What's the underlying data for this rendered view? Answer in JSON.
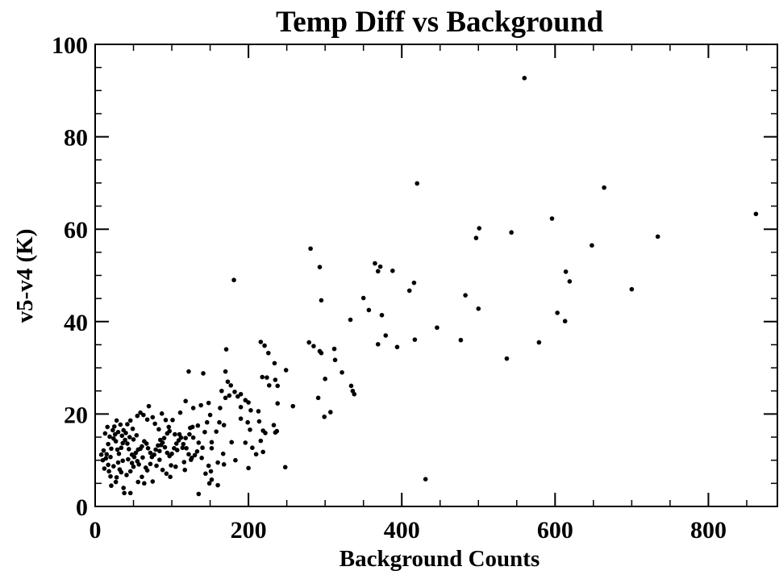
{
  "chart_data": {
    "type": "scatter",
    "title": "Temp Diff vs Background",
    "xlabel": "Background Counts",
    "ylabel": "v5-v4 (K)",
    "xlim": [
      0,
      890
    ],
    "ylim": [
      0,
      100
    ],
    "xticks": [
      0,
      200,
      400,
      600,
      800
    ],
    "yticks": [
      0,
      20,
      40,
      60,
      80,
      100
    ],
    "xtick_labels": [
      "0",
      "200",
      "400",
      "600",
      "800"
    ],
    "ytick_labels": [
      "0",
      "20",
      "40",
      "60",
      "80",
      "100"
    ],
    "grid": false,
    "points": [
      [
        560,
        92.7
      ],
      [
        420,
        69.9
      ],
      [
        664,
        69.0
      ],
      [
        862,
        63.3
      ],
      [
        596,
        62.3
      ],
      [
        501,
        60.2
      ],
      [
        497,
        58.1
      ],
      [
        543,
        59.3
      ],
      [
        734,
        58.4
      ],
      [
        648,
        56.5
      ],
      [
        281,
        55.8
      ],
      [
        365,
        52.6
      ],
      [
        372,
        51.9
      ],
      [
        369,
        50.9
      ],
      [
        293,
        51.8
      ],
      [
        388,
        51.0
      ],
      [
        614,
        50.8
      ],
      [
        619,
        48.7
      ],
      [
        416,
        48.4
      ],
      [
        181,
        49.0
      ],
      [
        410,
        46.7
      ],
      [
        700,
        47.0
      ],
      [
        483,
        45.7
      ],
      [
        295,
        44.6
      ],
      [
        350,
        45.1
      ],
      [
        357,
        42.5
      ],
      [
        374,
        41.4
      ],
      [
        500,
        42.8
      ],
      [
        603,
        41.9
      ],
      [
        613,
        40.1
      ],
      [
        333,
        40.4
      ],
      [
        446,
        38.7
      ],
      [
        379,
        37.0
      ],
      [
        417,
        36.1
      ],
      [
        477,
        36.0
      ],
      [
        579,
        35.5
      ],
      [
        279,
        35.5
      ],
      [
        369,
        35.1
      ],
      [
        394,
        34.5
      ],
      [
        312,
        34.1
      ],
      [
        285,
        34.7
      ],
      [
        293,
        33.6
      ],
      [
        295,
        33.2
      ],
      [
        216,
        35.6
      ],
      [
        221,
        34.8
      ],
      [
        171,
        34.0
      ],
      [
        537,
        32.0
      ],
      [
        313,
        31.7
      ],
      [
        226,
        33.2
      ],
      [
        234,
        31.0
      ],
      [
        322,
        29.0
      ],
      [
        249,
        29.5
      ],
      [
        122,
        29.2
      ],
      [
        170,
        29.2
      ],
      [
        141,
        28.8
      ],
      [
        334,
        26.1
      ],
      [
        336,
        25.0
      ],
      [
        338,
        24.3
      ],
      [
        300,
        27.6
      ],
      [
        291,
        23.5
      ],
      [
        173,
        27.0
      ],
      [
        177,
        26.2
      ],
      [
        218,
        28.0
      ],
      [
        224,
        27.9
      ],
      [
        235,
        27.4
      ],
      [
        238,
        26.1
      ],
      [
        227,
        26.2
      ],
      [
        182,
        24.8
      ],
      [
        175,
        24.0
      ],
      [
        186,
        23.8
      ],
      [
        190,
        24.3
      ],
      [
        196,
        23.0
      ],
      [
        165,
        25.0
      ],
      [
        170,
        23.5
      ],
      [
        190,
        21.5
      ],
      [
        200,
        22.5
      ],
      [
        203,
        20.8
      ],
      [
        213,
        20.6
      ],
      [
        238,
        22.3
      ],
      [
        258,
        21.7
      ],
      [
        163,
        21.3
      ],
      [
        148,
        22.4
      ],
      [
        150,
        19.8
      ],
      [
        146,
        18.2
      ],
      [
        138,
        21.9
      ],
      [
        128,
        21.3
      ],
      [
        118,
        22.8
      ],
      [
        111,
        20.3
      ],
      [
        307,
        20.4
      ],
      [
        299,
        19.4
      ],
      [
        190,
        19.0
      ],
      [
        199,
        18.2
      ],
      [
        202,
        16.6
      ],
      [
        233,
        17.6
      ],
      [
        235,
        16.0
      ],
      [
        237,
        16.3
      ],
      [
        214,
        18.4
      ],
      [
        219,
        16.4
      ],
      [
        222,
        15.9
      ],
      [
        216,
        14.2
      ],
      [
        162,
        18.2
      ],
      [
        168,
        17.6
      ],
      [
        158,
        16.2
      ],
      [
        152,
        13.9
      ],
      [
        143,
        16.1
      ],
      [
        134,
        17.5
      ],
      [
        127,
        17.2
      ],
      [
        128,
        14.9
      ],
      [
        135,
        13.8
      ],
      [
        140,
        12.7
      ],
      [
        152,
        12.6
      ],
      [
        167,
        11.4
      ],
      [
        178,
        13.9
      ],
      [
        196,
        13.8
      ],
      [
        205,
        12.7
      ],
      [
        210,
        11.3
      ],
      [
        219,
        11.8
      ],
      [
        200,
        8.3
      ],
      [
        183,
        10.0
      ],
      [
        168,
        9.1
      ],
      [
        148,
        8.8
      ],
      [
        151,
        7.6
      ],
      [
        160,
        9.5
      ],
      [
        139,
        10.5
      ],
      [
        144,
        7.1
      ],
      [
        133,
        11.9
      ],
      [
        125,
        10.1
      ],
      [
        116,
        9.6
      ],
      [
        117,
        7.9
      ],
      [
        105,
        8.6
      ],
      [
        107,
        12.2
      ],
      [
        114,
        12.7
      ],
      [
        110,
        15.6
      ],
      [
        118,
        14.8
      ],
      [
        123,
        15.6
      ],
      [
        124,
        17.0
      ],
      [
        104,
        15.6
      ],
      [
        101,
        18.7
      ],
      [
        97,
        16.3
      ],
      [
        94,
        15.8
      ],
      [
        90,
        14.8
      ],
      [
        86,
        13.3
      ],
      [
        84,
        12.0
      ],
      [
        84,
        10.1
      ],
      [
        80,
        8.8
      ],
      [
        88,
        7.9
      ],
      [
        93,
        7.1
      ],
      [
        72,
        9.2
      ],
      [
        68,
        7.8
      ],
      [
        61,
        6.4
      ],
      [
        57,
        9.1
      ],
      [
        50,
        8.6
      ],
      [
        46,
        7.6
      ],
      [
        41,
        6.8
      ],
      [
        34,
        7.4
      ],
      [
        28,
        6.3
      ],
      [
        20,
        6.5
      ],
      [
        21,
        4.5
      ],
      [
        27,
        5.3
      ],
      [
        37,
        4.0
      ],
      [
        46,
        2.9
      ],
      [
        135,
        2.7
      ],
      [
        149,
        5.0
      ],
      [
        248,
        8.5
      ],
      [
        431,
        5.9
      ],
      [
        20,
        10.7
      ],
      [
        14,
        10.4
      ],
      [
        10,
        10.0
      ],
      [
        8,
        11.2
      ],
      [
        11,
        12.1
      ],
      [
        15,
        11.3
      ],
      [
        17,
        13.5
      ],
      [
        21,
        12.5
      ],
      [
        24,
        14.7
      ],
      [
        27,
        14.1
      ],
      [
        29,
        12.3
      ],
      [
        31,
        11.4
      ],
      [
        34,
        12.7
      ],
      [
        36,
        13.7
      ],
      [
        39,
        14.4
      ],
      [
        42,
        13.6
      ],
      [
        44,
        12.4
      ],
      [
        48,
        11.2
      ],
      [
        51,
        10.7
      ],
      [
        53,
        11.6
      ],
      [
        56,
        12.3
      ],
      [
        59,
        12.5
      ],
      [
        61,
        13.0
      ],
      [
        64,
        14.1
      ],
      [
        67,
        13.6
      ],
      [
        69,
        12.6
      ],
      [
        72,
        11.6
      ],
      [
        74,
        10.7
      ],
      [
        77,
        11.2
      ],
      [
        79,
        12.3
      ],
      [
        82,
        13.2
      ],
      [
        85,
        14.4
      ],
      [
        88,
        13.8
      ],
      [
        91,
        12.8
      ],
      [
        94,
        11.6
      ],
      [
        97,
        10.9
      ],
      [
        100,
        11.4
      ],
      [
        103,
        12.6
      ],
      [
        106,
        13.6
      ],
      [
        109,
        14.3
      ],
      [
        112,
        14.9
      ],
      [
        115,
        13.5
      ],
      [
        119,
        12.6
      ],
      [
        122,
        11.3
      ],
      [
        126,
        10.5
      ],
      [
        130,
        11.1
      ],
      [
        23,
        16.5
      ],
      [
        25,
        17.3
      ],
      [
        28,
        18.6
      ],
      [
        33,
        17.7
      ],
      [
        37,
        16.5
      ],
      [
        42,
        17.8
      ],
      [
        46,
        18.6
      ],
      [
        49,
        16.8
      ],
      [
        55,
        19.6
      ],
      [
        59,
        20.3
      ],
      [
        63,
        19.8
      ],
      [
        68,
        18.8
      ],
      [
        70,
        21.7
      ],
      [
        75,
        19.3
      ],
      [
        78,
        17.9
      ],
      [
        83,
        16.7
      ],
      [
        87,
        20.1
      ],
      [
        92,
        18.7
      ],
      [
        96,
        17.2
      ],
      [
        13,
        15.8
      ],
      [
        16,
        17.2
      ],
      [
        19,
        15.1
      ],
      [
        26,
        15.6
      ],
      [
        30,
        16.1
      ],
      [
        35,
        15.3
      ],
      [
        40,
        15.9
      ],
      [
        45,
        15.0
      ],
      [
        50,
        14.5
      ],
      [
        54,
        15.4
      ],
      [
        12,
        8.2
      ],
      [
        17,
        9.0
      ],
      [
        24,
        8.7
      ],
      [
        30,
        9.5
      ],
      [
        36,
        9.9
      ],
      [
        43,
        10.2
      ],
      [
        48,
        9.4
      ],
      [
        55,
        9.8
      ],
      [
        62,
        10.6
      ],
      [
        66,
        8.4
      ],
      [
        38,
        2.9
      ],
      [
        56,
        5.3
      ],
      [
        18,
        7.6
      ],
      [
        32,
        8.0
      ],
      [
        64,
        5.0
      ],
      [
        75,
        5.4
      ],
      [
        98,
        6.4
      ],
      [
        152,
        5.8
      ],
      [
        160,
        4.6
      ],
      [
        99,
        8.9
      ]
    ]
  }
}
